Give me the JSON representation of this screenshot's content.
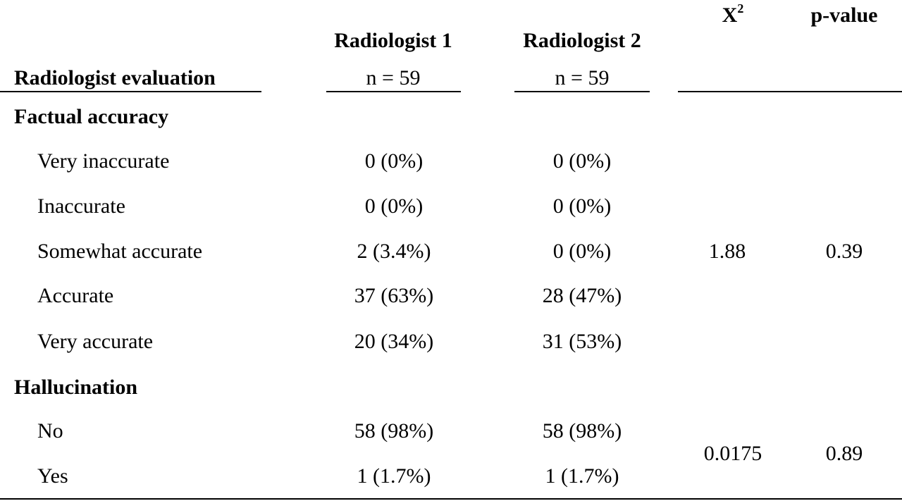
{
  "header": {
    "row_label": "Radiologist evaluation",
    "col1_title": "Radiologist 1",
    "col1_n": "n = 59",
    "col2_title": "Radiologist 2",
    "col2_n": "n = 59",
    "chi_base": "X",
    "chi_sup": "2",
    "pvalue_title": "p-value"
  },
  "sections": [
    {
      "title": "Factual accuracy",
      "rows": [
        {
          "label": "Very inaccurate",
          "r1": "0 (0%)",
          "r2": "0 (0%)"
        },
        {
          "label": "Inaccurate",
          "r1": "0 (0%)",
          "r2": "0 (0%)"
        },
        {
          "label": "Somewhat accurate",
          "r1": "2 (3.4%)",
          "r2": "0 (0%)"
        },
        {
          "label": "Accurate",
          "r1": "37 (63%)",
          "r2": "28 (47%)"
        },
        {
          "label": "Very accurate",
          "r1": "20 (34%)",
          "r2": "31 (53%)"
        }
      ],
      "chi2": "1.88",
      "pvalue": "0.39"
    },
    {
      "title": "Hallucination",
      "rows": [
        {
          "label": "No",
          "r1": "58 (98%)",
          "r2": "58 (98%)"
        },
        {
          "label": "Yes",
          "r1": "1 (1.7%)",
          "r2": "1 (1.7%)"
        }
      ],
      "chi2": "0.0175",
      "pvalue": "0.89"
    }
  ]
}
